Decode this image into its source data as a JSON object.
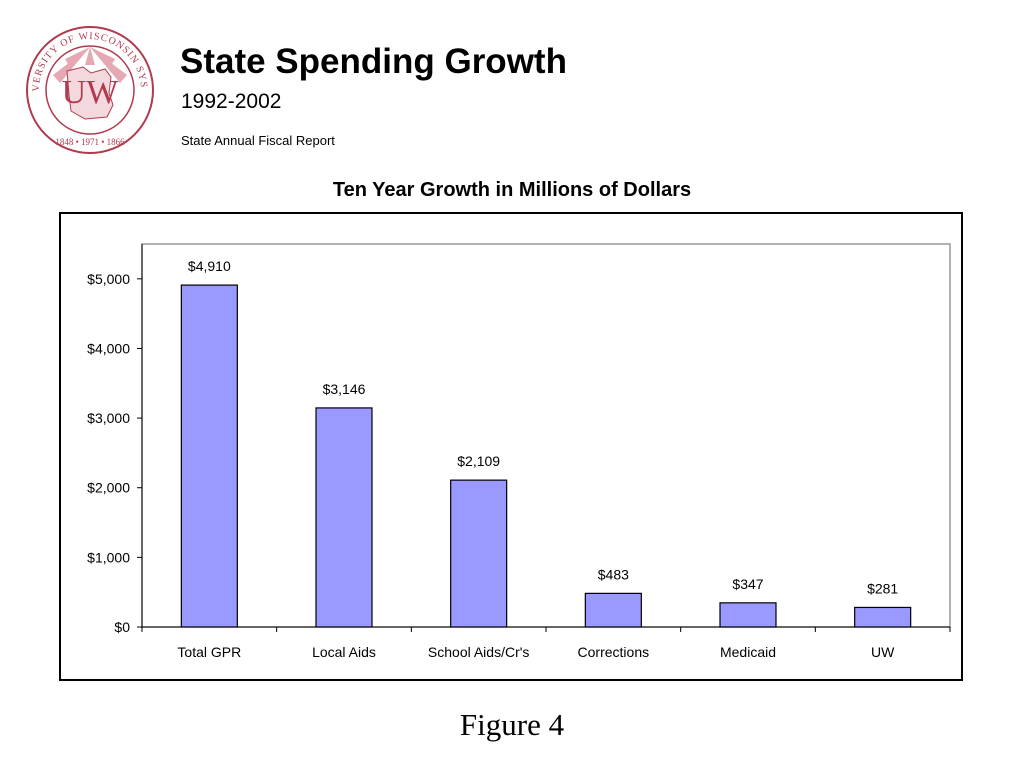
{
  "header": {
    "title": "State Spending Growth",
    "subtitle": "1992-2002",
    "report_name": "State Annual Fiscal Report"
  },
  "seal": {
    "text_top": "UNIVERSITY OF WISCONSIN SYSTEM",
    "monogram": "UW",
    "years": "1848 • 1971 • 1866",
    "color": "#b03a4e"
  },
  "chart_data": {
    "type": "bar",
    "title": "Ten Year Growth in Millions of Dollars",
    "categories": [
      "Total GPR",
      "Local Aids",
      "School Aids/Cr's",
      "Corrections",
      "Medicaid",
      "UW"
    ],
    "values": [
      4910,
      3146,
      2109,
      483,
      347,
      281
    ],
    "data_labels": [
      "$4,910",
      "$3,146",
      "$2,109",
      "$483",
      "$347",
      "$281"
    ],
    "yticks": [
      0,
      1000,
      2000,
      3000,
      4000,
      5000
    ],
    "ytick_labels": [
      "$0",
      "$1,000",
      "$2,000",
      "$3,000",
      "$4,000",
      "$5,000"
    ],
    "ylim": [
      0,
      5500
    ],
    "xlabel": "",
    "ylabel": "",
    "grid": false,
    "legend": "none",
    "bar_color": "#9999ff"
  },
  "caption": "Figure 4"
}
